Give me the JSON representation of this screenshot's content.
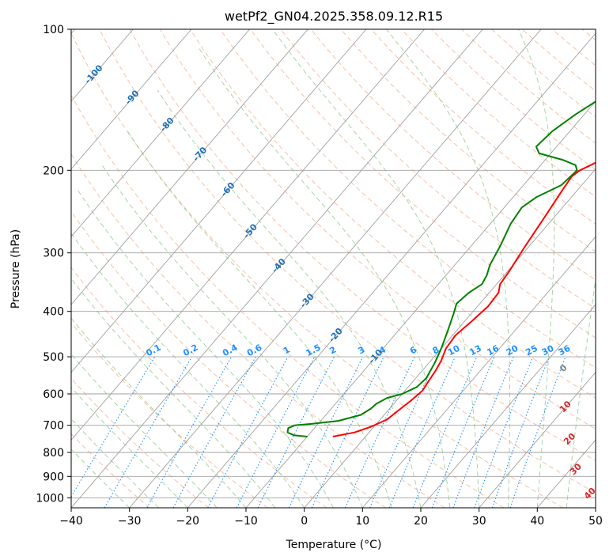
{
  "chart_data": {
    "type": "line",
    "title": "wetPf2_GN04.2025.358.09.12.R15",
    "xlabel": "Temperature (°C)",
    "ylabel": "Pressure (hPa)",
    "xlim": [
      -40,
      50
    ],
    "ylim": [
      1050,
      100
    ],
    "y_scale": "log",
    "x_ticks": [
      -40,
      -30,
      -20,
      -10,
      0,
      10,
      20,
      30,
      40,
      50
    ],
    "y_ticks": [
      100,
      200,
      300,
      400,
      500,
      600,
      700,
      800,
      900,
      1000
    ],
    "grid": true,
    "colors": {
      "temperature": "#ff0000",
      "dewpoint": "#008000",
      "dry_adiabats": "#f4a582",
      "moist_adiabats": "#8fc98f",
      "mixing_ratio": "#1e90ff",
      "skew_isotherms": "#a0a0a0",
      "dry_labels": "#1f6fb4",
      "moist_labels": "#d62728",
      "zero_label": "#808080"
    },
    "series": [
      {
        "key": "temperature",
        "points": [
          [
            -5.6,
            740
          ],
          [
            -2.5,
            725
          ],
          [
            -0.5,
            705
          ],
          [
            1.2,
            680
          ],
          [
            1.8,
            650
          ],
          [
            2.5,
            620
          ],
          [
            3.0,
            590
          ],
          [
            2.6,
            560
          ],
          [
            2.3,
            535
          ],
          [
            1.8,
            510
          ],
          [
            0.8,
            480
          ],
          [
            0.5,
            450
          ],
          [
            1.2,
            420
          ],
          [
            1.8,
            390
          ],
          [
            1.6,
            365
          ],
          [
            0.6,
            350
          ],
          [
            0.3,
            330
          ],
          [
            -0.7,
            290
          ],
          [
            -1.7,
            250
          ],
          [
            -2.6,
            220
          ],
          [
            -3.0,
            206
          ],
          [
            -2.5,
            200
          ],
          [
            -1.0,
            193
          ],
          [
            2.0,
            186
          ],
          [
            6.0,
            177
          ],
          [
            10.0,
            165
          ],
          [
            15.0,
            152
          ],
          [
            20.0,
            142
          ],
          [
            25.0,
            133
          ],
          [
            28.0,
            127
          ],
          [
            31.0,
            120
          ],
          [
            34.0,
            114
          ],
          [
            36.0,
            108
          ],
          [
            38.0,
            102
          ],
          [
            39.0,
            100
          ]
        ]
      },
      {
        "key": "dewpoint",
        "points": [
          [
            -10.0,
            740
          ],
          [
            -12.5,
            735
          ],
          [
            -14.0,
            725
          ],
          [
            -14.5,
            710
          ],
          [
            -13.8,
            700
          ],
          [
            -11.0,
            695
          ],
          [
            -7.0,
            685
          ],
          [
            -4.0,
            665
          ],
          [
            -3.2,
            645
          ],
          [
            -3.0,
            630
          ],
          [
            -2.0,
            612
          ],
          [
            0.0,
            600
          ],
          [
            1.5,
            580
          ],
          [
            1.8,
            555
          ],
          [
            1.0,
            515
          ],
          [
            0.0,
            480
          ],
          [
            -1.5,
            440
          ],
          [
            -3.0,
            405
          ],
          [
            -4.0,
            385
          ],
          [
            -3.5,
            365
          ],
          [
            -2.5,
            350
          ],
          [
            -3.0,
            335
          ],
          [
            -4.0,
            318
          ],
          [
            -5.0,
            290
          ],
          [
            -6.5,
            260
          ],
          [
            -7.0,
            240
          ],
          [
            -6.0,
            228
          ],
          [
            -3.5,
            215
          ],
          [
            -3.0,
            200
          ],
          [
            -4.0,
            195
          ],
          [
            -7.0,
            190
          ],
          [
            -12.0,
            184
          ],
          [
            -13.5,
            178
          ],
          [
            -13.0,
            165
          ],
          [
            -11.5,
            152
          ],
          [
            -9.5,
            140
          ],
          [
            -7.0,
            131
          ],
          [
            -3.0,
            121
          ],
          [
            -0.5,
            113
          ],
          [
            0.8,
            106
          ],
          [
            1.2,
            100
          ]
        ]
      }
    ],
    "annotations": {
      "dry_adiabat_labels": [
        {
          "text": "-100",
          "t": -100,
          "p": 125
        },
        {
          "text": "-90",
          "t": -90,
          "p": 140
        },
        {
          "text": "-80",
          "t": -80,
          "p": 160
        },
        {
          "text": "-70",
          "t": -70,
          "p": 185
        },
        {
          "text": "-60",
          "t": -60,
          "p": 220
        },
        {
          "text": "-50",
          "t": -50,
          "p": 270
        },
        {
          "text": "-40",
          "t": -40,
          "p": 320
        },
        {
          "text": "-30",
          "t": -30,
          "p": 380
        },
        {
          "text": "-20",
          "t": -20,
          "p": 450
        },
        {
          "text": "-10",
          "t": -10,
          "p": 500
        }
      ],
      "mixing_ratio_labels": [
        "0.1",
        "0.2",
        "0.4",
        "0.6",
        "1",
        "1.5",
        "2",
        "3",
        "4",
        "6",
        "8",
        "10",
        "13",
        "16",
        "20",
        "25",
        "30",
        "36"
      ],
      "moist_adiabat_labels": [
        {
          "text": "0",
          "t": 24,
          "p": 530
        },
        {
          "text": "10",
          "t": 30,
          "p": 640
        },
        {
          "text": "20",
          "t": 35.5,
          "p": 750
        },
        {
          "text": "30",
          "t": 41,
          "p": 870
        },
        {
          "text": "40",
          "t": 47,
          "p": 980
        }
      ]
    }
  }
}
